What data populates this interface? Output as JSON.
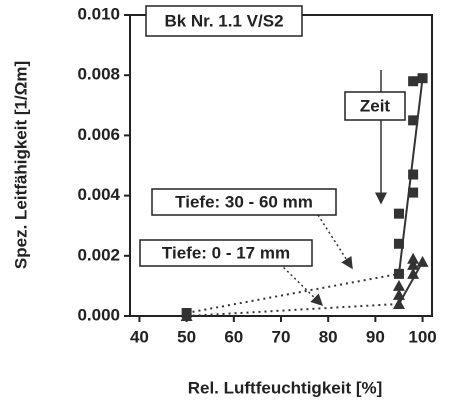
{
  "chart_data": {
    "type": "scatter",
    "title": "Bk Nr. 1.1 V/S2",
    "xlabel": "Rel. Luftfeuchtigkeit [%]",
    "ylabel": "Spez. Leitfähigkeit [1/Ωm]",
    "annotations": [
      "Zeit"
    ],
    "xlim": [
      38,
      102
    ],
    "xticks": [
      40,
      50,
      60,
      70,
      80,
      90,
      100
    ],
    "ylim": [
      0,
      0.01
    ],
    "yticks": [
      {
        "value": 0,
        "label": "0.000"
      },
      {
        "value": 0.002,
        "label": "0.002"
      },
      {
        "value": 0.004,
        "label": "0.004"
      },
      {
        "value": 0.006,
        "label": "0.006"
      },
      {
        "value": 0.008,
        "label": "0.008"
      },
      {
        "value": 0.01,
        "label": "0.010"
      }
    ],
    "series": [
      {
        "name": "Tiefe: 30 - 60 mm",
        "color": "#333333",
        "marker": "square",
        "x": [
          50,
          95,
          95,
          95,
          98,
          98,
          98,
          98,
          100
        ],
        "values": [
          0.0001,
          0.0014,
          0.0024,
          0.0034,
          0.0041,
          0.0047,
          0.0065,
          0.0078,
          0.0079
        ]
      },
      {
        "name": "Tiefe: 0 - 17 mm",
        "color": "#333333",
        "marker": "triangle",
        "x": [
          50,
          95,
          95,
          95,
          98,
          98,
          98,
          100
        ],
        "values": [
          0.0,
          0.0004,
          0.0007,
          0.001,
          0.0014,
          0.0017,
          0.0019,
          0.0018
        ]
      }
    ]
  }
}
